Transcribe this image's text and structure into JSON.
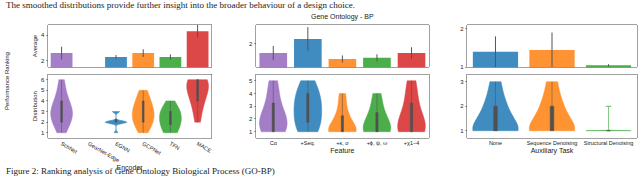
{
  "page": {
    "header": "The smoothed distributions provide further insight into the broader behaviour of a design choice.",
    "shared_ylabel": "Performance Ranking",
    "caption": "Figure 2: Ranking analysis of Gene Ontology Biological Process (GO-BP)"
  },
  "chart_data": [
    {
      "type": "bar",
      "ylabel": "Average",
      "categories": [
        "SchNet",
        "GearNet-Edge",
        "EGNN",
        "GCPNet",
        "TFN",
        "MACE"
      ],
      "values": [
        2.6,
        null,
        2.3,
        2.6,
        2.3,
        4.3
      ],
      "errors": [
        0.5,
        null,
        0.15,
        0.3,
        0.2,
        0.5
      ],
      "colors": [
        "#9467bd",
        "#1f77b4",
        "#1f77b4",
        "#ff7f0e",
        "#2ca02c",
        "#d62728"
      ],
      "ylim": [
        1.5,
        4.8
      ],
      "yticks": [
        2,
        4
      ],
      "grid": false,
      "tick_labels": "y"
    },
    {
      "type": "violin",
      "ylabel": "Distribution",
      "xlabel": "Encoder",
      "categories": [
        "SchNet",
        "GearNet-Edge",
        "EGNN",
        "GCPNet",
        "TFN",
        "MACE"
      ],
      "samples": [
        [
          1,
          2,
          2,
          2,
          3,
          3,
          3,
          3,
          4,
          4,
          5,
          6
        ],
        null,
        [
          1,
          2,
          2,
          2,
          2,
          2,
          2,
          3,
          3
        ],
        [
          1,
          2,
          2,
          2,
          3,
          3,
          3,
          4,
          4,
          5
        ],
        [
          1,
          1,
          2,
          2,
          2,
          3,
          3,
          3,
          4
        ],
        [
          2,
          3,
          4,
          4,
          5,
          5,
          5,
          6,
          6,
          6,
          6
        ]
      ],
      "colors": [
        "#9467bd",
        "#1f77b4",
        "#1f77b4",
        "#ff7f0e",
        "#2ca02c",
        "#d62728"
      ],
      "ylim": [
        0.5,
        6.5
      ],
      "yticks": [
        1,
        2,
        3,
        4,
        5,
        6
      ],
      "grid": false
    },
    {
      "type": "bar",
      "title": "Gene Ontology - BP",
      "categories": [
        "Cα",
        "+Seq.",
        "+κ, σ",
        "+ϕ, ψ, ω",
        "+χ1−4"
      ],
      "values": [
        1.6,
        2.2,
        1.35,
        1.4,
        1.6
      ],
      "errors": [
        0.3,
        0.5,
        0.15,
        0.15,
        0.25
      ],
      "colors": [
        "#9467bd",
        "#1f77b4",
        "#ff7f0e",
        "#2ca02c",
        "#d62728"
      ],
      "ylim": [
        1,
        2.8
      ],
      "yticks": [
        2
      ],
      "grid": false,
      "tick_labels": "y"
    },
    {
      "type": "violin",
      "xlabel": "Feature",
      "categories": [
        "Cα",
        "+Seq.",
        "+κ, σ",
        "+ϕ, ψ, ω",
        "+χ1−4"
      ],
      "samples": [
        [
          1,
          1,
          1,
          2,
          2,
          2,
          3,
          4,
          5
        ],
        [
          1,
          1,
          2,
          2,
          3,
          3,
          4,
          4,
          5
        ],
        [
          1,
          1,
          1,
          1,
          1,
          2,
          2,
          3,
          4
        ],
        [
          1,
          1,
          1,
          1,
          2,
          2,
          3,
          4
        ],
        [
          1,
          1,
          1,
          1,
          2,
          2,
          3,
          4,
          5
        ]
      ],
      "colors": [
        "#9467bd",
        "#1f77b4",
        "#ff7f0e",
        "#2ca02c",
        "#d62728"
      ],
      "ylim": [
        0.5,
        5.5
      ],
      "yticks": [
        1,
        2,
        3,
        4,
        5
      ],
      "grid": false
    },
    {
      "type": "bar",
      "categories": [
        "None",
        "Sequence Denoising",
        "Structural Denoising"
      ],
      "values": [
        1.4,
        1.45,
        1.05
      ],
      "errors": [
        0.4,
        0.45,
        0.03
      ],
      "colors": [
        "#1f77b4",
        "#ff7f0e",
        "#2ca02c"
      ],
      "ylim": [
        1,
        2.1
      ],
      "yticks": [
        1,
        2
      ],
      "grid": false,
      "tick_labels": "y"
    },
    {
      "type": "violin",
      "xlabel": "Auxiliary Task",
      "categories": [
        "None",
        "Sequence Denoising",
        "Structural Denoising"
      ],
      "samples": [
        [
          1,
          1,
          1,
          1,
          1,
          2,
          2,
          3
        ],
        [
          1,
          1,
          1,
          1,
          1,
          2,
          2,
          3
        ],
        [
          1,
          1,
          1,
          1,
          1,
          1,
          1,
          1,
          2
        ]
      ],
      "colors": [
        "#1f77b4",
        "#ff7f0e",
        "#2ca02c"
      ],
      "ylim": [
        0.7,
        3.3
      ],
      "yticks": [
        1,
        2,
        3
      ],
      "grid": false
    }
  ]
}
